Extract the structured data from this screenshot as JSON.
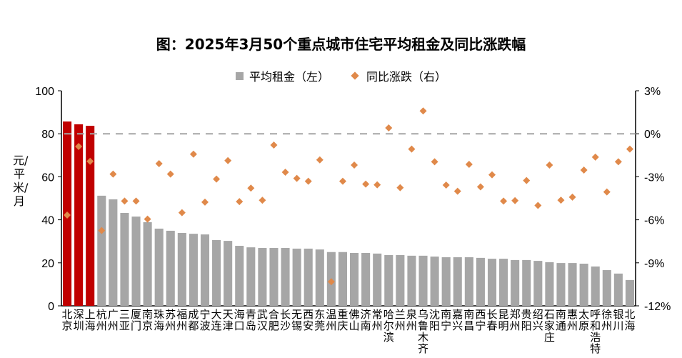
{
  "chart_data": {
    "type": "bar",
    "title": "图：2025年3月50个重点城市住宅平均租金及同比涨跌幅",
    "ylabel": "元/平米/月",
    "ylabel_right": "",
    "ylim": [
      0,
      100
    ],
    "ylim_right": [
      -12,
      3
    ],
    "yticks": [
      "0",
      "20",
      "40",
      "60",
      "80",
      "100"
    ],
    "yticks_right": [
      "-12%",
      "-9%",
      "-6%",
      "-3%",
      "0%",
      "3%"
    ],
    "legend": [
      "平均租金（左）",
      "同比涨跌（右）"
    ],
    "legend_position": "top-center",
    "highlight_color": "#c00000",
    "bar_color": "#a6a6a6",
    "dot_color": "#e0894a",
    "categories": [
      "北京",
      "深圳",
      "上海",
      "杭州",
      "广州",
      "三亚",
      "厦门",
      "南京",
      "珠海",
      "苏州",
      "福州",
      "成都",
      "宁波",
      "大连",
      "天津",
      "海口",
      "青岛",
      "武汉",
      "合肥",
      "长沙",
      "无锡",
      "西安",
      "东莞",
      "温州",
      "重庆",
      "佛山",
      "济南",
      "常州",
      "哈尔滨",
      "兰州",
      "泉州",
      "乌鲁木齐",
      "沈阳",
      "南宁",
      "嘉兴",
      "南昌",
      "西宁",
      "长春",
      "昆明",
      "郑州",
      "贵阳",
      "绍兴",
      "石家庄",
      "南通",
      "惠州",
      "太原",
      "呼和浩特",
      "徐州",
      "银川",
      "北海"
    ],
    "series": [
      {
        "name": "平均租金（左）",
        "type": "bar",
        "axis": "left",
        "values": [
          85.7,
          84.4,
          83.7,
          51.2,
          49.5,
          43.2,
          41.5,
          38.9,
          35.9,
          34.9,
          33.9,
          33.5,
          33.2,
          30.6,
          30.2,
          27.9,
          27.2,
          26.9,
          26.9,
          26.9,
          26.6,
          26.6,
          26.2,
          25.0,
          25.0,
          24.6,
          24.6,
          24.3,
          23.6,
          23.6,
          23.3,
          23.3,
          22.9,
          22.6,
          22.6,
          22.6,
          22.3,
          21.9,
          21.9,
          21.3,
          21.3,
          20.9,
          20.3,
          19.9,
          19.9,
          19.6,
          18.3,
          16.6,
          15.0,
          12.0
        ]
      },
      {
        "name": "同比涨跌（右）",
        "type": "scatter",
        "axis": "right",
        "unit": "%",
        "values": [
          -5.67,
          -0.89,
          -1.92,
          -6.75,
          -2.81,
          -4.69,
          -4.69,
          -5.95,
          -2.08,
          -2.81,
          -5.5,
          -1.42,
          -4.77,
          -3.16,
          -1.87,
          -4.73,
          -3.79,
          -4.64,
          -0.79,
          -2.68,
          -3.11,
          -3.31,
          -1.82,
          -10.32,
          -3.31,
          -2.18,
          -3.51,
          -3.56,
          0.41,
          -3.76,
          -1.07,
          1.59,
          -1.95,
          -3.58,
          -4.01,
          -2.13,
          -3.7,
          -2.86,
          -4.69,
          -4.66,
          -3.26,
          -5.0,
          -2.18,
          -4.63,
          -4.42,
          -2.53,
          -1.63,
          -4.06,
          -1.95,
          -1.07
        ]
      }
    ],
    "highlighted_categories": 3,
    "reference_line": 0
  }
}
